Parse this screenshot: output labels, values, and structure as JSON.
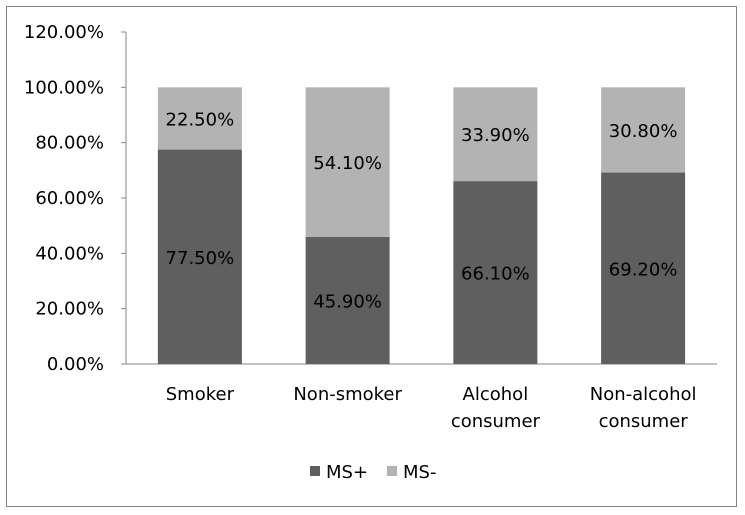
{
  "chart_data": {
    "type": "bar",
    "stacked": true,
    "categories": [
      [
        "Smoker"
      ],
      [
        "Non-smoker"
      ],
      [
        "Alcohol",
        "consumer"
      ],
      [
        "Non-alcohol",
        "consumer"
      ]
    ],
    "series": [
      {
        "name": "MS+",
        "color": "#5f5f5f",
        "values": [
          77.5,
          45.9,
          66.1,
          69.2
        ],
        "labels": [
          "77.50%",
          "45.90%",
          "66.10%",
          "69.20%"
        ]
      },
      {
        "name": "MS-",
        "color": "#b3b3b3",
        "values": [
          22.5,
          54.1,
          33.9,
          30.8
        ],
        "labels": [
          "22.50%",
          "54.10%",
          "33.90%",
          "30.80%"
        ]
      }
    ],
    "ylim": [
      0,
      120
    ],
    "yticks": [
      "0.00%",
      "20.00%",
      "40.00%",
      "60.00%",
      "80.00%",
      "100.00%",
      "120.00%"
    ],
    "grid": false,
    "legend_position": "bottom"
  }
}
